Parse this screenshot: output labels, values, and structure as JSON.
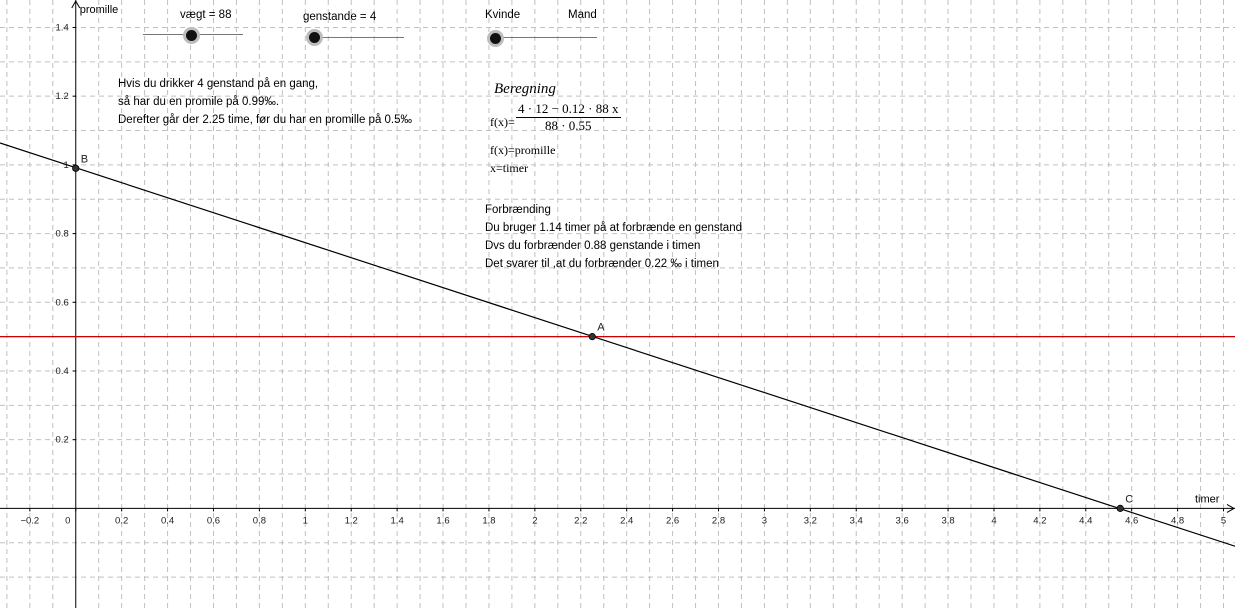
{
  "sliders": [
    {
      "label": "vægt = 88",
      "value": 88
    },
    {
      "label": "genstande = 4",
      "value": 4
    },
    {
      "label_left": "Kvinde",
      "label_right": "Mand",
      "value": "Kvinde"
    }
  ],
  "info": {
    "line1": "Hvis du drikker 4 genstand på en gang,",
    "line2": "så har du en  promile på 0.99‰.",
    "line3": "Derefter går der 2.25 time, før du har en promille på 0.5‰"
  },
  "beregning": {
    "title": "Beregning",
    "fx_prefix": "f(x)=",
    "numerator": "4 · 12 − 0.12 · 88 x",
    "denominator": "88 · 0.55",
    "def1": "f(x)=promille",
    "def2": "x=timer"
  },
  "forbraending": {
    "title": "Forbrænding",
    "line1": "Du bruger 1.14 timer på at forbrænde en genstand",
    "line2": "Dvs du forbrænder 0.88 genstande i timen",
    "line3": "Det svarer til ,at du forbrænder 0.22 ‰ i timen"
  },
  "chart_data": {
    "type": "line",
    "xlabel": "timer",
    "ylabel": "promille",
    "xlim": [
      -0.33,
      5.05
    ],
    "ylim": [
      -0.29,
      1.48
    ],
    "grid": true,
    "x_ticks": [
      -0.2,
      0,
      0.2,
      0.4,
      0.6,
      0.8,
      1,
      1.2,
      1.4,
      1.6,
      1.8,
      2,
      2.2,
      2.4,
      2.6,
      2.8,
      3,
      3.2,
      3.4,
      3.6,
      3.8,
      4,
      4.2,
      4.4,
      4.6,
      4.8,
      5
    ],
    "x_tick_labels": [
      "−0.2",
      "0",
      "0.2",
      "0.4",
      "0.6",
      "0.8",
      "1",
      "1.2",
      "1.4",
      "1.6",
      "1.8",
      "2",
      "2.2",
      "2.4",
      "2.6",
      "2.8",
      "3",
      "3.2",
      "3.4",
      "3.6",
      "3.8",
      "4",
      "4.2",
      "4.4",
      "4.6",
      "4.8",
      "5"
    ],
    "y_ticks": [
      0.2,
      0.4,
      0.6,
      0.8,
      1,
      1.2,
      1.4
    ],
    "y_tick_labels": [
      "0.2",
      "0.4",
      "0.6",
      "0.8",
      "1",
      "1.2",
      "1.4"
    ],
    "series": [
      {
        "kind": "function",
        "color": "#000000",
        "intercept": 0.9917,
        "slope": -0.2182
      },
      {
        "kind": "horizontal",
        "color": "#cc0000",
        "y": 0.5
      }
    ],
    "points": [
      {
        "name": "B",
        "x": 0,
        "y": 0.99
      },
      {
        "name": "A",
        "x": 2.25,
        "y": 0.5
      },
      {
        "name": "C",
        "x": 4.55,
        "y": 0
      }
    ]
  }
}
